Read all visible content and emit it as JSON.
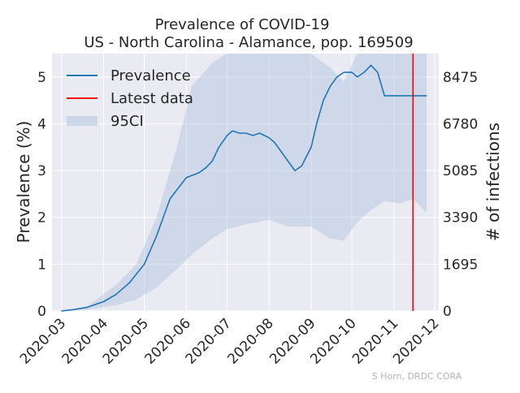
{
  "chart_data": {
    "type": "line",
    "title": "Prevalence of COVID-19",
    "subtitle": "US - North Carolina - Alamance, pop. 169509",
    "xlabel": "",
    "ylabel": "Prevalence (%)",
    "y2label": "# of infections",
    "x_ticks": [
      "2020-03",
      "2020-04",
      "2020-05",
      "2020-06",
      "2020-07",
      "2020-08",
      "2020-09",
      "2020-10",
      "2020-11",
      "2020-12"
    ],
    "y_ticks": [
      "0",
      "1",
      "2",
      "3",
      "4",
      "5"
    ],
    "y2_ticks": [
      "0",
      "1695",
      "3390",
      "5085",
      "6780",
      "8475"
    ],
    "ylim": [
      0,
      5.5
    ],
    "xlim": [
      "2020-02-23",
      "2020-12-04"
    ],
    "grid": true,
    "legend_position": "top-left",
    "colors": {
      "prevalence": "#1f77b4",
      "latest": "#ff0000",
      "ci": "#b0c4de"
    },
    "latest_date": "2020-11-15",
    "legend": [
      {
        "label": "Prevalence",
        "kind": "line"
      },
      {
        "label": "Latest data",
        "kind": "vline"
      },
      {
        "label": "95CI",
        "kind": "band"
      }
    ],
    "series": [
      {
        "name": "Prevalence",
        "x": [
          "2020-03-01",
          "2020-03-10",
          "2020-03-20",
          "2020-04-01",
          "2020-04-10",
          "2020-04-20",
          "2020-05-01",
          "2020-05-10",
          "2020-05-20",
          "2020-06-01",
          "2020-06-10",
          "2020-06-15",
          "2020-06-20",
          "2020-06-25",
          "2020-07-01",
          "2020-07-05",
          "2020-07-10",
          "2020-07-15",
          "2020-07-20",
          "2020-07-25",
          "2020-08-01",
          "2020-08-05",
          "2020-08-10",
          "2020-08-15",
          "2020-08-20",
          "2020-08-25",
          "2020-09-01",
          "2020-09-05",
          "2020-09-10",
          "2020-09-15",
          "2020-09-20",
          "2020-09-25",
          "2020-10-01",
          "2020-10-05",
          "2020-10-10",
          "2020-10-15",
          "2020-10-20",
          "2020-10-25",
          "2020-11-01",
          "2020-11-05",
          "2020-11-10",
          "2020-11-15",
          "2020-11-20",
          "2020-11-25"
        ],
        "values": [
          0.0,
          0.03,
          0.08,
          0.2,
          0.35,
          0.6,
          1.0,
          1.6,
          2.4,
          2.85,
          2.95,
          3.05,
          3.2,
          3.5,
          3.75,
          3.85,
          3.8,
          3.8,
          3.75,
          3.8,
          3.7,
          3.6,
          3.4,
          3.2,
          3.0,
          3.1,
          3.5,
          4.0,
          4.5,
          4.8,
          5.0,
          5.1,
          5.1,
          5.0,
          5.1,
          5.25,
          5.1,
          4.6,
          4.6,
          4.6,
          4.6,
          4.6,
          4.6,
          4.6
        ]
      },
      {
        "name": "95CI",
        "x": [
          "2020-03-01",
          "2020-03-20",
          "2020-04-10",
          "2020-04-25",
          "2020-05-10",
          "2020-05-25",
          "2020-06-05",
          "2020-06-20",
          "2020-07-01",
          "2020-07-15",
          "2020-08-01",
          "2020-08-15",
          "2020-09-01",
          "2020-09-15",
          "2020-09-25",
          "2020-10-05",
          "2020-10-15",
          "2020-10-25",
          "2020-11-05",
          "2020-11-15",
          "2020-11-25"
        ],
        "upper": [
          0.0,
          0.1,
          0.55,
          1.0,
          2.0,
          3.5,
          4.8,
          5.3,
          5.5,
          5.5,
          5.5,
          5.5,
          5.5,
          5.2,
          4.9,
          5.5,
          5.5,
          5.5,
          5.5,
          5.5,
          5.5
        ],
        "lower": [
          0.0,
          0.03,
          0.12,
          0.25,
          0.5,
          0.9,
          1.2,
          1.55,
          1.75,
          1.85,
          1.95,
          1.8,
          1.8,
          1.55,
          1.5,
          1.9,
          2.15,
          2.35,
          2.3,
          2.4,
          2.1
        ]
      }
    ]
  },
  "credit": "S Horn, DRDC CORA"
}
